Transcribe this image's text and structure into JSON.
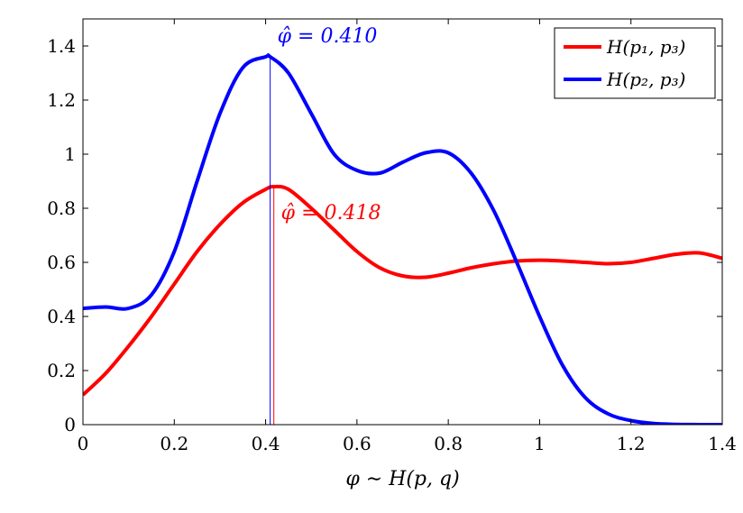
{
  "chart_data": {
    "type": "line",
    "title": "",
    "xlabel": "φ ∼ H(p, q)",
    "ylabel": "",
    "xlim": [
      0,
      1.4
    ],
    "ylim": [
      0,
      1.5
    ],
    "x_ticks": [
      "0",
      "0.2",
      "0.4",
      "0.6",
      "0.8",
      "1",
      "1.2",
      "1.4"
    ],
    "y_ticks": [
      "0",
      "0.2",
      "0.4",
      "0.6",
      "0.8",
      "1",
      "1.2",
      "1.4"
    ],
    "grid": false,
    "legend_position": "top-right",
    "series": [
      {
        "name": "H(p₁, p₃)",
        "color": "#ff0000",
        "x": [
          0,
          0.05,
          0.1,
          0.15,
          0.2,
          0.25,
          0.3,
          0.35,
          0.4,
          0.418,
          0.45,
          0.5,
          0.55,
          0.6,
          0.65,
          0.7,
          0.75,
          0.8,
          0.85,
          0.9,
          0.95,
          1.0,
          1.05,
          1.1,
          1.15,
          1.2,
          1.25,
          1.3,
          1.35,
          1.4
        ],
        "y": [
          0.11,
          0.19,
          0.29,
          0.4,
          0.52,
          0.64,
          0.74,
          0.82,
          0.87,
          0.88,
          0.87,
          0.8,
          0.72,
          0.64,
          0.58,
          0.55,
          0.545,
          0.56,
          0.58,
          0.595,
          0.605,
          0.608,
          0.605,
          0.6,
          0.595,
          0.6,
          0.615,
          0.63,
          0.635,
          0.615
        ]
      },
      {
        "name": "H(p₂, p₃)",
        "color": "#0000ff",
        "x": [
          0,
          0.05,
          0.1,
          0.15,
          0.2,
          0.25,
          0.3,
          0.35,
          0.4,
          0.41,
          0.45,
          0.5,
          0.55,
          0.6,
          0.65,
          0.7,
          0.75,
          0.8,
          0.85,
          0.9,
          0.95,
          1.0,
          1.05,
          1.1,
          1.15,
          1.2,
          1.25,
          1.3,
          1.35,
          1.4
        ],
        "y": [
          0.43,
          0.435,
          0.43,
          0.48,
          0.64,
          0.9,
          1.15,
          1.32,
          1.36,
          1.36,
          1.3,
          1.15,
          1.0,
          0.94,
          0.93,
          0.97,
          1.005,
          1.005,
          0.93,
          0.79,
          0.6,
          0.4,
          0.22,
          0.1,
          0.04,
          0.015,
          0.004,
          0.001,
          0.0,
          0.0
        ]
      }
    ],
    "annotations": [
      {
        "text": "φ̂ = 0.410",
        "x": 0.41,
        "color": "#0000ff"
      },
      {
        "text": "φ̂ = 0.418",
        "x": 0.418,
        "color": "#ff0000"
      }
    ]
  }
}
